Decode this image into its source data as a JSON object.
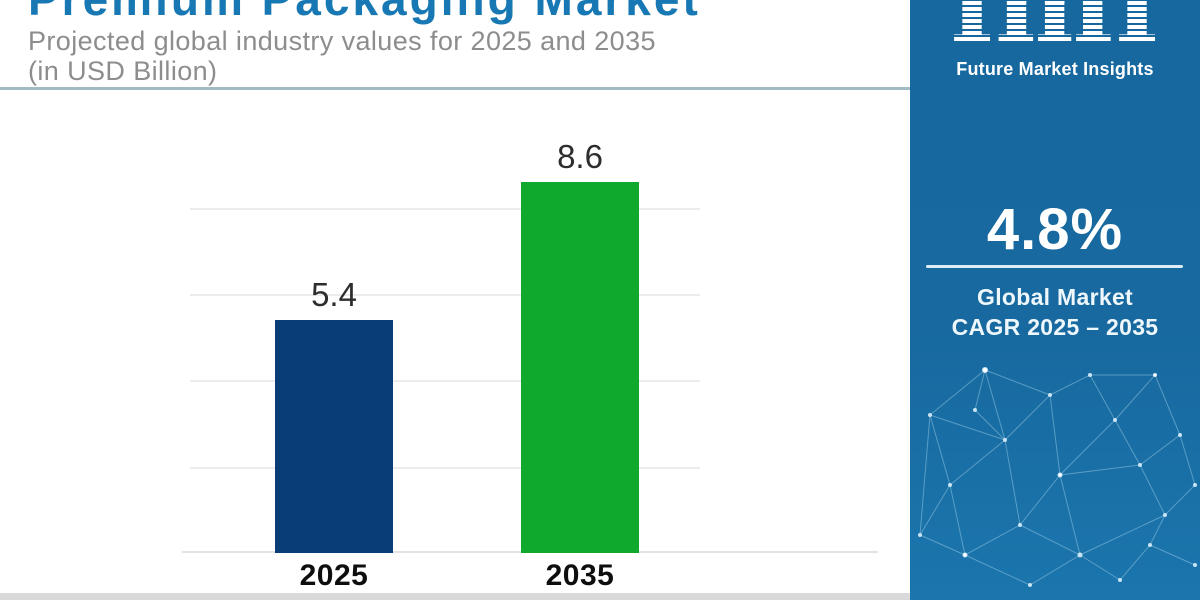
{
  "header": {
    "title": "Premium Packaging Market",
    "subtitle_line1": "Projected global industry values for 2025 and 2035",
    "subtitle_line2": "(in USD Billion)",
    "title_color": "#1878b4"
  },
  "chart_data": {
    "type": "bar",
    "title": "Premium Packaging Market",
    "subtitle": "Projected global industry values for 2025 and 2035 (in USD Billion)",
    "categories": [
      "2025",
      "2035"
    ],
    "values": [
      5.4,
      8.6
    ],
    "bar_colors": [
      "#093d77",
      "#0fa92d"
    ],
    "xlabel": "",
    "ylabel": "USD Billion",
    "ylim": [
      0,
      10
    ],
    "gridline_values": [
      2,
      4,
      6,
      8
    ],
    "grid": true,
    "legend": "none",
    "value_labels_shown": true
  },
  "sidebar": {
    "background": "#16689f",
    "logo": {
      "text": "imi",
      "subtext": "Future Market Insights"
    },
    "stat": {
      "value": "4.8%",
      "label_line1": "Global Market",
      "label_line2": "CAGR 2025 – 2035"
    }
  }
}
